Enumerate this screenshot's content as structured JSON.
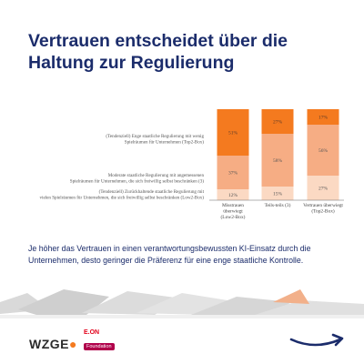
{
  "header": {
    "title": "Vertrauen entscheidet über die Haltung zur Regulierung"
  },
  "summary": "Je höher das Vertrauen in einen verantwortungsbewussten KI-Einsatz durch die Unternehmen, desto geringer die Präferenz für eine enge staatliche Kontrolle.",
  "logos": {
    "wzge": "WZGE",
    "eon_mark": "E.ON",
    "eon_sub": "Foundation"
  },
  "colors": {
    "title": "#1b2c6b",
    "top2": "#f47a1f",
    "moderate": "#f6ad84",
    "low2": "#fbd9c3",
    "arrow": "#1b2c6b"
  },
  "chart_data": {
    "type": "bar",
    "stacked": true,
    "ylim": [
      0,
      100
    ],
    "categories": [
      "Misstrauen überwiegt (Low2-Box)",
      "Teils-teils (3)",
      "Vertrauen überwiegt (Top2-Box)"
    ],
    "category_lines": [
      [
        "Misstrauen",
        "überwiegt",
        "(Low2-Box)"
      ],
      [
        "Teils-teils (3)"
      ],
      [
        "Vertrauen überwiegt",
        "(Top2-Box)"
      ]
    ],
    "series": [
      {
        "name": "(Tendenziell) Zurückhaltende staatliche Regulierung mit vielen Spielräumen für Unternehmen, die sich freiwillig selbst beschränken (Low2-Box)",
        "label_lines": [
          "(Tendenziell) Zurückhaltende staatliche Regulierung mit",
          "vielen Spielräumen für Unternehmen, die sich freiwillig selbst beschränken (Low2-Box)"
        ],
        "values": [
          12,
          15,
          27
        ],
        "labels": [
          "12%",
          "15%",
          "27%"
        ]
      },
      {
        "name": "Moderate staatliche Regulierung mit angemessenen Spielräumen für Unternehmen, die sich freiwillig selbst beschränken (3)",
        "label_lines": [
          "Moderate staatliche Regulierung mit angemessenen",
          "Spielräumen für Unternehmen, die sich freiwillig selbst beschränken (3)"
        ],
        "values": [
          37,
          58,
          56
        ],
        "labels": [
          "37%",
          "58%",
          "56%"
        ]
      },
      {
        "name": "(Tendenziell) Enge staatliche Regulierung mit wenig Spielräumen für Unternehmen (Top2-Box)",
        "label_lines": [
          "(Tendenziell) Enge staatliche Regulierung mit wenig",
          "Spielräumen für Unternehmen (Top2-Box)"
        ],
        "values": [
          51,
          27,
          17
        ],
        "labels": [
          "51%",
          "27%",
          "17%"
        ]
      }
    ]
  }
}
